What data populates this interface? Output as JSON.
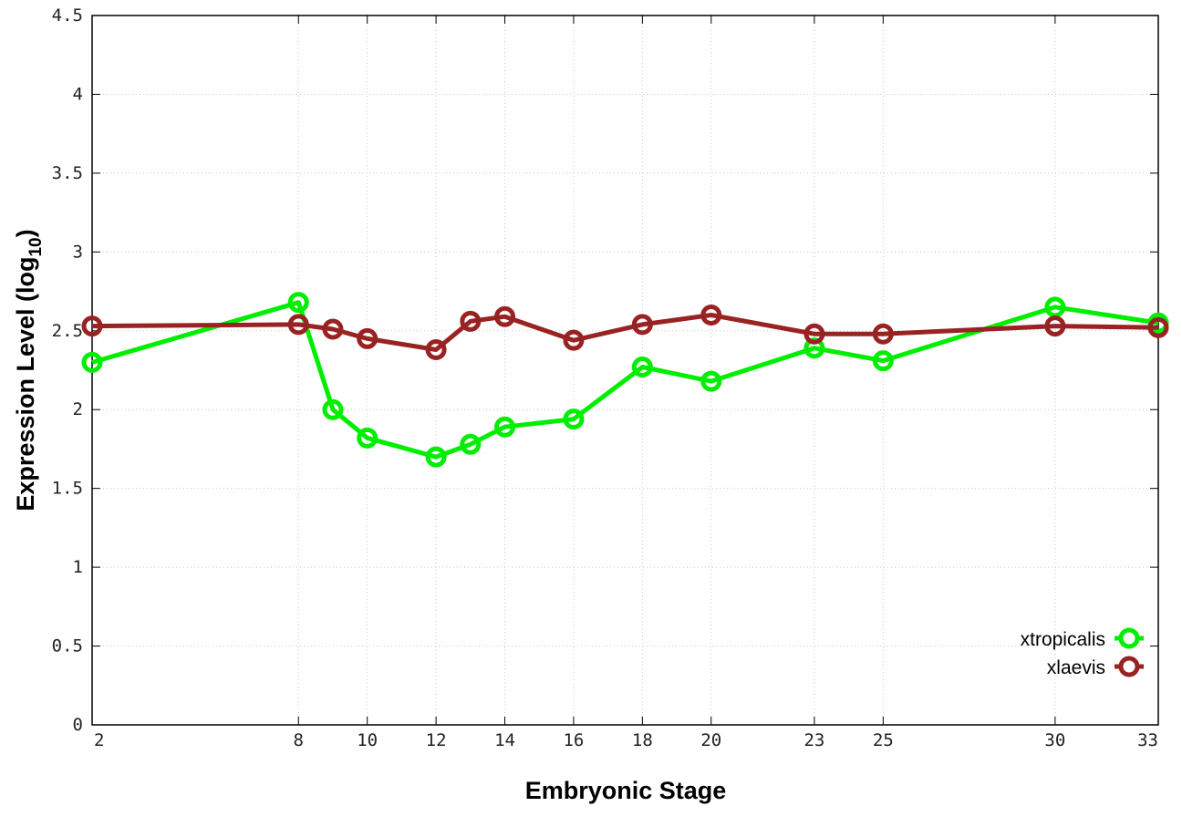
{
  "chart_data": {
    "type": "line",
    "xlabel": "Embryonic Stage",
    "ylabel_main": "Expression Level (log",
    "ylabel_sub": "10",
    "ylabel_close": ")",
    "xlim": [
      2,
      33
    ],
    "ylim": [
      0,
      4.5
    ],
    "x_ticks": [
      2,
      8,
      10,
      12,
      14,
      16,
      18,
      20,
      23,
      25,
      30,
      33
    ],
    "y_ticks": [
      0,
      0.5,
      1,
      1.5,
      2,
      2.5,
      3,
      3.5,
      4,
      4.5
    ],
    "y_tick_labels": [
      "0",
      "0.5",
      "1",
      "1.5",
      "2",
      "2.5",
      "3",
      "3.5",
      "4",
      "4.5"
    ],
    "grid": true,
    "legend_position": "bottom-right",
    "series": [
      {
        "name": "xtropicalis",
        "color": "#00ee00",
        "x": [
          2,
          8,
          9,
          10,
          12,
          13,
          14,
          16,
          18,
          20,
          23,
          25,
          30,
          33
        ],
        "y": [
          2.3,
          2.68,
          2.0,
          1.82,
          1.7,
          1.78,
          1.89,
          1.94,
          2.27,
          2.18,
          2.39,
          2.31,
          2.65,
          2.55
        ]
      },
      {
        "name": "xlaevis",
        "color": "#992222",
        "x": [
          2,
          8,
          9,
          10,
          12,
          13,
          14,
          16,
          18,
          20,
          23,
          25,
          30,
          33
        ],
        "y": [
          2.53,
          2.54,
          2.51,
          2.45,
          2.38,
          2.56,
          2.59,
          2.44,
          2.54,
          2.6,
          2.48,
          2.48,
          2.53,
          2.52
        ]
      }
    ]
  }
}
